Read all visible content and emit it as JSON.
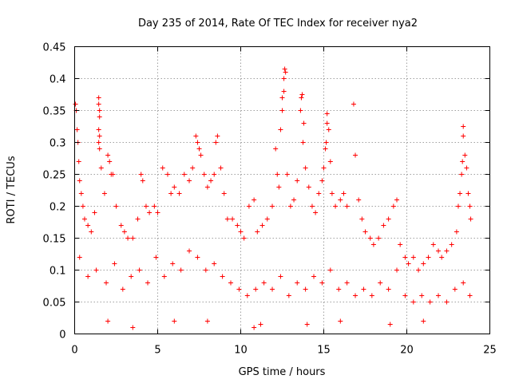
{
  "chart_data": {
    "type": "scatter",
    "title": "Day 235 of 2014, Rate Of TEC Index for receiver nya2",
    "xlabel": "GPS time / hours",
    "ylabel": "ROTI / TECUs",
    "xlim": [
      0,
      25
    ],
    "ylim": [
      0,
      0.45
    ],
    "xticks": [
      0,
      5,
      10,
      15,
      20,
      25
    ],
    "xtick_labels": [
      "0",
      "5",
      "10",
      "15",
      "20",
      "25"
    ],
    "yticks": [
      0,
      0.05,
      0.1,
      0.15,
      0.2,
      0.25,
      0.3,
      0.35,
      0.4,
      0.45
    ],
    "ytick_labels": [
      "0",
      "0.05",
      "0.1",
      "0.15",
      "0.2",
      "0.25",
      "0.3",
      "0.35",
      "0.4",
      "0.45"
    ],
    "grid": true,
    "marker": "+",
    "color": "#ff0000",
    "series": [
      {
        "name": "ROTI",
        "points": [
          [
            0.05,
            0.36
          ],
          [
            0.1,
            0.35
          ],
          [
            0.15,
            0.32
          ],
          [
            0.2,
            0.3
          ],
          [
            0.25,
            0.27
          ],
          [
            0.3,
            0.24
          ],
          [
            0.4,
            0.22
          ],
          [
            0.5,
            0.2
          ],
          [
            0.6,
            0.18
          ],
          [
            0.8,
            0.17
          ],
          [
            1.0,
            0.16
          ],
          [
            1.2,
            0.19
          ],
          [
            1.45,
            0.37
          ],
          [
            1.45,
            0.36
          ],
          [
            1.5,
            0.35
          ],
          [
            1.5,
            0.34
          ],
          [
            1.45,
            0.32
          ],
          [
            1.5,
            0.31
          ],
          [
            1.45,
            0.3
          ],
          [
            1.5,
            0.29
          ],
          [
            1.6,
            0.26
          ],
          [
            1.8,
            0.22
          ],
          [
            2.0,
            0.28
          ],
          [
            2.1,
            0.27
          ],
          [
            2.2,
            0.25
          ],
          [
            2.3,
            0.25
          ],
          [
            2.5,
            0.2
          ],
          [
            2.8,
            0.17
          ],
          [
            3.0,
            0.16
          ],
          [
            3.2,
            0.15
          ],
          [
            3.5,
            0.15
          ],
          [
            3.8,
            0.18
          ],
          [
            4.0,
            0.25
          ],
          [
            4.1,
            0.24
          ],
          [
            4.3,
            0.2
          ],
          [
            4.5,
            0.19
          ],
          [
            4.8,
            0.2
          ],
          [
            5.0,
            0.19
          ],
          [
            5.3,
            0.26
          ],
          [
            5.6,
            0.25
          ],
          [
            5.8,
            0.22
          ],
          [
            6.0,
            0.23
          ],
          [
            6.3,
            0.22
          ],
          [
            6.6,
            0.25
          ],
          [
            6.9,
            0.24
          ],
          [
            7.1,
            0.26
          ],
          [
            7.3,
            0.31
          ],
          [
            7.4,
            0.3
          ],
          [
            7.5,
            0.29
          ],
          [
            7.6,
            0.28
          ],
          [
            7.8,
            0.25
          ],
          [
            8.0,
            0.23
          ],
          [
            8.2,
            0.24
          ],
          [
            8.4,
            0.25
          ],
          [
            8.5,
            0.3
          ],
          [
            8.6,
            0.31
          ],
          [
            8.8,
            0.26
          ],
          [
            9.0,
            0.22
          ],
          [
            9.2,
            0.18
          ],
          [
            9.5,
            0.18
          ],
          [
            9.8,
            0.17
          ],
          [
            10.0,
            0.16
          ],
          [
            10.2,
            0.15
          ],
          [
            10.5,
            0.2
          ],
          [
            10.8,
            0.21
          ],
          [
            11.0,
            0.16
          ],
          [
            11.3,
            0.17
          ],
          [
            11.6,
            0.18
          ],
          [
            11.9,
            0.2
          ],
          [
            12.1,
            0.29
          ],
          [
            12.2,
            0.25
          ],
          [
            12.3,
            0.23
          ],
          [
            12.4,
            0.32
          ],
          [
            12.5,
            0.35
          ],
          [
            12.5,
            0.37
          ],
          [
            12.6,
            0.38
          ],
          [
            12.6,
            0.4
          ],
          [
            12.65,
            0.415
          ],
          [
            12.7,
            0.41
          ],
          [
            12.8,
            0.25
          ],
          [
            13.0,
            0.2
          ],
          [
            13.2,
            0.21
          ],
          [
            13.4,
            0.24
          ],
          [
            13.6,
            0.35
          ],
          [
            13.65,
            0.37
          ],
          [
            13.7,
            0.375
          ],
          [
            13.8,
            0.33
          ],
          [
            13.75,
            0.3
          ],
          [
            13.9,
            0.26
          ],
          [
            14.1,
            0.23
          ],
          [
            14.3,
            0.2
          ],
          [
            14.5,
            0.19
          ],
          [
            14.7,
            0.22
          ],
          [
            14.9,
            0.24
          ],
          [
            15.0,
            0.26
          ],
          [
            15.1,
            0.29
          ],
          [
            15.15,
            0.3
          ],
          [
            15.2,
            0.33
          ],
          [
            15.2,
            0.345
          ],
          [
            15.3,
            0.32
          ],
          [
            15.4,
            0.27
          ],
          [
            15.5,
            0.22
          ],
          [
            15.7,
            0.2
          ],
          [
            16.0,
            0.21
          ],
          [
            16.2,
            0.22
          ],
          [
            16.4,
            0.2
          ],
          [
            16.8,
            0.36
          ],
          [
            16.9,
            0.28
          ],
          [
            17.1,
            0.21
          ],
          [
            17.3,
            0.18
          ],
          [
            17.5,
            0.16
          ],
          [
            17.8,
            0.15
          ],
          [
            18.0,
            0.14
          ],
          [
            18.3,
            0.15
          ],
          [
            18.6,
            0.17
          ],
          [
            18.9,
            0.18
          ],
          [
            19.2,
            0.2
          ],
          [
            19.4,
            0.21
          ],
          [
            19.6,
            0.14
          ],
          [
            19.9,
            0.12
          ],
          [
            20.1,
            0.11
          ],
          [
            20.4,
            0.12
          ],
          [
            20.7,
            0.1
          ],
          [
            21.0,
            0.11
          ],
          [
            21.3,
            0.12
          ],
          [
            21.6,
            0.14
          ],
          [
            21.9,
            0.13
          ],
          [
            22.1,
            0.12
          ],
          [
            22.4,
            0.13
          ],
          [
            22.7,
            0.14
          ],
          [
            23.0,
            0.16
          ],
          [
            23.1,
            0.2
          ],
          [
            23.2,
            0.22
          ],
          [
            23.3,
            0.25
          ],
          [
            23.35,
            0.27
          ],
          [
            23.4,
            0.31
          ],
          [
            23.4,
            0.325
          ],
          [
            23.5,
            0.28
          ],
          [
            23.6,
            0.26
          ],
          [
            23.7,
            0.22
          ],
          [
            23.8,
            0.2
          ],
          [
            23.85,
            0.18
          ],
          [
            0.3,
            0.12
          ],
          [
            0.8,
            0.09
          ],
          [
            1.3,
            0.1
          ],
          [
            1.9,
            0.08
          ],
          [
            2.4,
            0.11
          ],
          [
            2.9,
            0.07
          ],
          [
            3.4,
            0.09
          ],
          [
            3.9,
            0.1
          ],
          [
            4.4,
            0.08
          ],
          [
            4.9,
            0.12
          ],
          [
            5.4,
            0.09
          ],
          [
            5.9,
            0.11
          ],
          [
            6.4,
            0.1
          ],
          [
            6.9,
            0.13
          ],
          [
            7.4,
            0.12
          ],
          [
            7.9,
            0.1
          ],
          [
            8.4,
            0.11
          ],
          [
            8.9,
            0.09
          ],
          [
            9.4,
            0.08
          ],
          [
            9.9,
            0.07
          ],
          [
            10.4,
            0.06
          ],
          [
            10.9,
            0.07
          ],
          [
            11.4,
            0.08
          ],
          [
            11.9,
            0.07
          ],
          [
            12.4,
            0.09
          ],
          [
            12.9,
            0.06
          ],
          [
            13.4,
            0.08
          ],
          [
            13.9,
            0.07
          ],
          [
            14.4,
            0.09
          ],
          [
            14.9,
            0.08
          ],
          [
            15.4,
            0.1
          ],
          [
            15.9,
            0.07
          ],
          [
            16.4,
            0.08
          ],
          [
            16.9,
            0.06
          ],
          [
            17.4,
            0.07
          ],
          [
            17.9,
            0.06
          ],
          [
            18.4,
            0.08
          ],
          [
            18.9,
            0.07
          ],
          [
            19.4,
            0.1
          ],
          [
            19.9,
            0.06
          ],
          [
            20.4,
            0.05
          ],
          [
            20.9,
            0.06
          ],
          [
            21.4,
            0.05
          ],
          [
            21.9,
            0.06
          ],
          [
            22.4,
            0.05
          ],
          [
            22.9,
            0.07
          ],
          [
            23.4,
            0.08
          ],
          [
            23.8,
            0.06
          ],
          [
            10.8,
            0.01
          ],
          [
            11.2,
            0.015
          ],
          [
            3.5,
            0.01
          ],
          [
            14.0,
            0.015
          ],
          [
            19.0,
            0.015
          ],
          [
            6.0,
            0.02
          ],
          [
            2.0,
            0.02
          ],
          [
            16.0,
            0.02
          ],
          [
            21.0,
            0.02
          ],
          [
            8.0,
            0.02
          ]
        ]
      }
    ]
  }
}
